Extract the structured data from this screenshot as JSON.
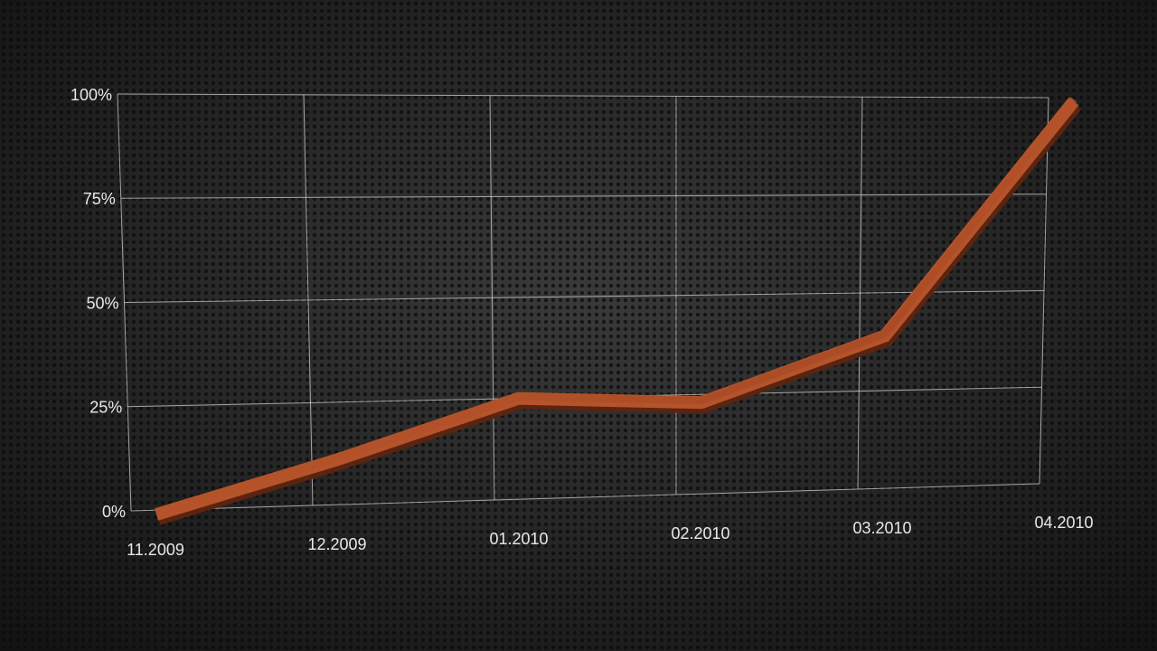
{
  "chart_data": {
    "type": "line",
    "categories": [
      "11.2009",
      "12.2009",
      "01.2010",
      "02.2010",
      "03.2010",
      "04.2010"
    ],
    "values": [
      0,
      12,
      26,
      24,
      40,
      100
    ],
    "color": "#b5532a",
    "ylim": [
      0,
      100
    ],
    "yticks": [
      {
        "value": 0,
        "label": "0%"
      },
      {
        "value": 25,
        "label": "25%"
      },
      {
        "value": 50,
        "label": "50%"
      },
      {
        "value": 75,
        "label": "75%"
      },
      {
        "value": 100,
        "label": "100%"
      }
    ],
    "grid": true
  }
}
